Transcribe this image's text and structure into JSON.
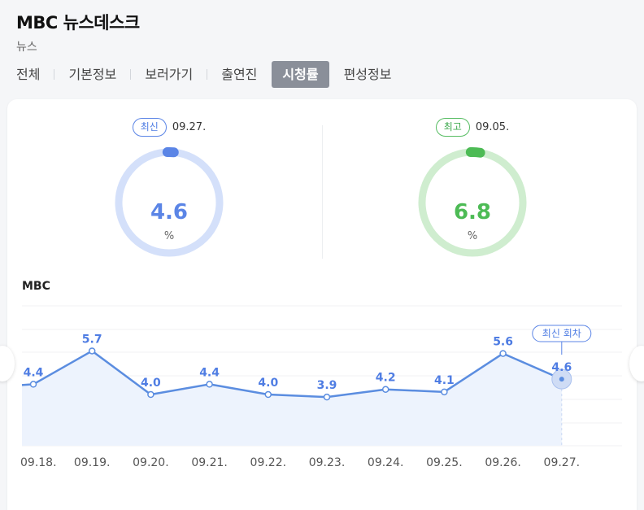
{
  "header": {
    "title": "MBC 뉴스데스크",
    "subtitle": "뉴스"
  },
  "tabs": [
    {
      "label": "전체",
      "active": false
    },
    {
      "label": "기본정보",
      "active": false
    },
    {
      "label": "보러가기",
      "active": false
    },
    {
      "label": "출연진",
      "active": false
    },
    {
      "label": "시청률",
      "active": true
    },
    {
      "label": "편성정보",
      "active": false
    }
  ],
  "latest": {
    "badge": "최신",
    "date": "09.27.",
    "value": "4.6",
    "unit": "%",
    "level": 4.6,
    "color": "#5b85e6",
    "track_color": "#d4e0fa"
  },
  "best": {
    "badge": "최고",
    "date": "09.05.",
    "value": "6.8",
    "unit": "%",
    "level": 6.8,
    "color": "#4dbb55",
    "track_color": "#cfedcf"
  },
  "chart_data": {
    "type": "area",
    "title": "MBC",
    "categories": [
      "09.18.",
      "09.19.",
      "09.20.",
      "09.21.",
      "09.22.",
      "09.23.",
      "09.24.",
      "09.25.",
      "09.26.",
      "09.27."
    ],
    "series": [
      {
        "values": [
          4.4,
          5.7,
          4.0,
          4.4,
          4.0,
          3.9,
          4.2,
          4.1,
          5.6,
          4.6
        ]
      }
    ],
    "data_labels": [
      "4.4",
      "5.7",
      "4.0",
      "4.4",
      "4.0",
      "3.9",
      "4.2",
      "4.1",
      "5.6",
      "4.6"
    ],
    "annotation": "최신 회차",
    "grid": true,
    "line_color": "#5b8de0",
    "area_color": "#edf3fd"
  }
}
